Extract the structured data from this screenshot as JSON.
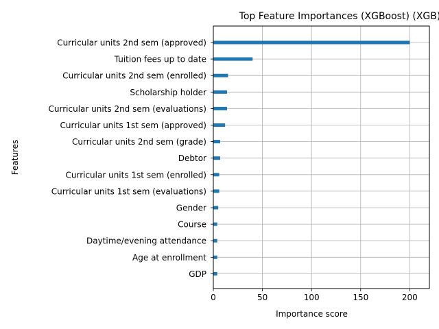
{
  "chart_data": {
    "type": "bar",
    "orientation": "horizontal",
    "title": "Top Feature Importances (XGBoost) (XGB)",
    "xlabel": "Importance score",
    "ylabel": "Features",
    "xlim": [
      0,
      220
    ],
    "xticks": [
      0,
      50,
      100,
      150,
      200
    ],
    "grid": true,
    "bar_color": "#1f77b4",
    "categories": [
      "Curricular units 2nd sem (approved)",
      "Tuition fees up to date",
      "Curricular units 2nd sem (enrolled)",
      "Scholarship holder",
      "Curricular units 2nd sem (evaluations)",
      "Curricular units 1st sem (approved)",
      "Curricular units 2nd sem (grade)",
      "Debtor",
      "Curricular units 1st sem (enrolled)",
      "Curricular units 1st sem (evaluations)",
      "Gender",
      "Course",
      "Daytime/evening attendance",
      "Age at enrollment",
      "GDP"
    ],
    "values": [
      200,
      40,
      15,
      14,
      14,
      12,
      7,
      7,
      6,
      6,
      5,
      4,
      4,
      4,
      4
    ]
  }
}
